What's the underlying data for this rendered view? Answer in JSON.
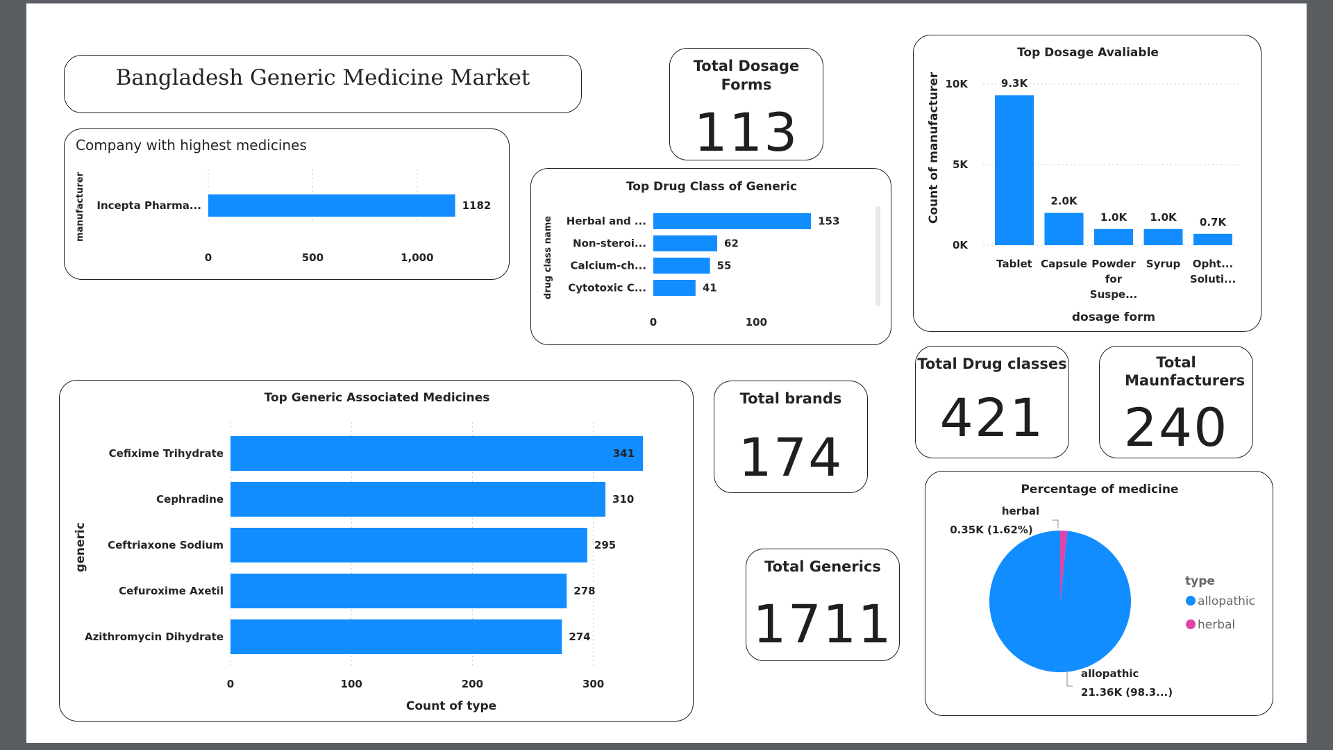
{
  "title": "Bangladesh Generic Medicine Market",
  "kpis": {
    "dosage_forms": {
      "label": "Total Dosage Forms",
      "value": "113"
    },
    "brands": {
      "label": "Total brands",
      "value": "174"
    },
    "generics": {
      "label": "Total Generics",
      "value": "1711"
    },
    "drug_classes": {
      "label": "Total Drug classes",
      "value": "421"
    },
    "manufacturers": {
      "label": "Total Maunfacturers",
      "value": "240"
    }
  },
  "colors": {
    "bar": "#118dff",
    "herbal": "#e044a7",
    "allopathic": "#118dff"
  },
  "chart_data": [
    {
      "id": "company",
      "type": "bar",
      "orientation": "horizontal",
      "title": "Company with highest medicines",
      "ylabel": "manufacturer",
      "xlabel": "",
      "categories": [
        "Incepta Pharma..."
      ],
      "values": [
        1182
      ],
      "data_labels": [
        "1182"
      ],
      "xlim": [
        0,
        1200
      ],
      "xticks": [
        0,
        500,
        1000
      ],
      "xtick_labels": [
        "0",
        "500",
        "1,000"
      ]
    },
    {
      "id": "drug_class",
      "type": "bar",
      "orientation": "horizontal",
      "title": "Top Drug Class of Generic",
      "ylabel": "drug class name",
      "xlabel": "",
      "categories": [
        "Herbal and ...",
        "Non-steroi...",
        "Calcium-ch...",
        "Cytotoxic C..."
      ],
      "values": [
        153,
        62,
        55,
        41
      ],
      "data_labels": [
        "153",
        "62",
        "55",
        "41"
      ],
      "xlim": [
        0,
        190
      ],
      "xticks": [
        0,
        100
      ],
      "xtick_labels": [
        "0",
        "100"
      ]
    },
    {
      "id": "dosage",
      "type": "bar",
      "orientation": "vertical",
      "title": "Top Dosage Avaliable",
      "ylabel": "Count of manufacturer",
      "xlabel": "dosage form",
      "categories": [
        [
          "Tablet"
        ],
        [
          "Capsule"
        ],
        [
          "Powder",
          "for",
          "Suspe..."
        ],
        [
          "Syrup"
        ],
        [
          "Opht...",
          "Soluti..."
        ]
      ],
      "values": [
        9300,
        2000,
        1000,
        1000,
        700
      ],
      "data_labels": [
        "9.3K",
        "2.0K",
        "1.0K",
        "1.0K",
        "0.7K"
      ],
      "ylim": [
        0,
        10000
      ],
      "yticks": [
        0,
        5000,
        10000
      ],
      "ytick_labels": [
        "0K",
        "5K",
        "10K"
      ]
    },
    {
      "id": "generic",
      "type": "bar",
      "orientation": "horizontal",
      "title": "Top Generic Associated Medicines",
      "ylabel": "generic",
      "xlabel": "Count of type",
      "categories": [
        "Cefixime Trihydrate",
        "Cephradine",
        "Ceftriaxone Sodium",
        "Cefuroxime Axetil",
        "Azithromycin Dihydrate"
      ],
      "values": [
        341,
        310,
        295,
        278,
        274
      ],
      "data_labels": [
        "341",
        "310",
        "295",
        "278",
        "274"
      ],
      "xlim": [
        0,
        345
      ],
      "xticks": [
        0,
        100,
        200,
        300
      ],
      "xtick_labels": [
        "0",
        "100",
        "200",
        "300"
      ]
    },
    {
      "id": "medicine_pct",
      "type": "pie",
      "title": "Percentage of medicine",
      "legend_title": "type",
      "legend_position": "right",
      "slices": [
        {
          "name": "allopathic",
          "value": 21360,
          "label_line1": "allopathic",
          "label_line2": "21.36K (98.3...)"
        },
        {
          "name": "herbal",
          "value": 350,
          "label_line1": "herbal",
          "label_line2": "0.35K (1.62%)"
        }
      ]
    }
  ]
}
